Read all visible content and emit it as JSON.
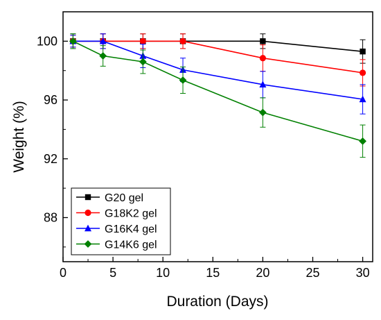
{
  "chart_data": {
    "type": "line",
    "title": "",
    "xlabel": "Duration (Days)",
    "ylabel": "Weight (%)",
    "xlim": [
      0,
      31
    ],
    "ylim": [
      85,
      102
    ],
    "xticks": [
      0,
      5,
      10,
      15,
      20,
      25,
      30
    ],
    "yticks": [
      88,
      92,
      96,
      100
    ],
    "grid": false,
    "legend_position": "bottom-left",
    "series": [
      {
        "name": "G20 gel",
        "color": "#000000",
        "marker": "square",
        "x": [
          1,
          4,
          8,
          12,
          20,
          30
        ],
        "y": [
          100,
          100,
          100,
          100,
          100,
          99.3
        ],
        "error": [
          0.5,
          0.5,
          0.5,
          0.5,
          0.5,
          0.8
        ]
      },
      {
        "name": "G18K2 gel",
        "color": "#ff0000",
        "marker": "circle",
        "x": [
          1,
          4,
          8,
          12,
          20,
          30
        ],
        "y": [
          100,
          100,
          100,
          100,
          98.85,
          97.85
        ],
        "error": [
          0.4,
          0.5,
          0.5,
          0.5,
          0.9,
          0.9
        ]
      },
      {
        "name": "G16K4 gel",
        "color": "#0000ff",
        "marker": "triangle",
        "x": [
          1,
          4,
          8,
          12,
          20,
          30
        ],
        "y": [
          100,
          100,
          99.0,
          98.05,
          97.05,
          96.05
        ],
        "error": [
          0.4,
          0.5,
          0.8,
          0.8,
          0.9,
          1.0
        ]
      },
      {
        "name": "G14K6 gel",
        "color": "#008000",
        "marker": "diamond",
        "x": [
          1,
          4,
          8,
          12,
          20,
          30
        ],
        "y": [
          100,
          99.0,
          98.6,
          97.35,
          95.15,
          93.2
        ],
        "error": [
          0.5,
          0.7,
          0.8,
          0.9,
          1.0,
          1.1
        ]
      }
    ]
  }
}
